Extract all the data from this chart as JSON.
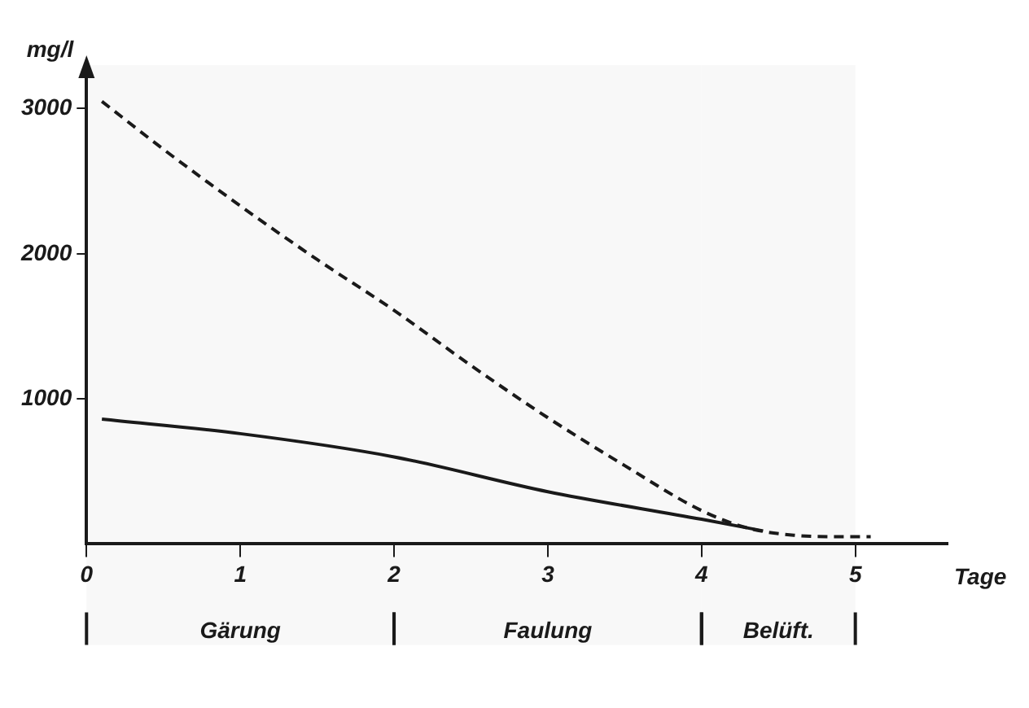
{
  "chart_data": {
    "type": "line",
    "xlabel": "Tage",
    "ylabel": "mg/l",
    "xlim": [
      0,
      5.6
    ],
    "ylim": [
      0,
      3300
    ],
    "xticks": [
      0,
      1,
      2,
      3,
      4,
      5
    ],
    "yticks": [
      1000,
      2000,
      3000
    ],
    "grid": false,
    "legend": false,
    "marker": "none",
    "series": [
      {
        "color": "#1a1a1a",
        "line_style": "dashed",
        "x": [
          0.1,
          0.5,
          1,
          1.5,
          2,
          2.5,
          3,
          3.5,
          4,
          4.3,
          4.6,
          4.9,
          5.1
        ],
        "values": [
          3050,
          2720,
          2330,
          1960,
          1610,
          1230,
          870,
          540,
          230,
          110,
          60,
          50,
          50
        ]
      },
      {
        "color": "#1a1a1a",
        "line_style": "solid",
        "x": [
          0.1,
          1,
          2,
          3,
          4,
          4.4
        ],
        "values": [
          860,
          760,
          600,
          360,
          170,
          90
        ]
      }
    ],
    "bands": [
      {
        "axis": "x",
        "from": 0,
        "to": 2,
        "label": "Gärung"
      },
      {
        "axis": "x",
        "from": 2,
        "to": 4,
        "label": "Faulung"
      },
      {
        "axis": "x",
        "from": 4,
        "to": 5,
        "label": "Belüft."
      }
    ]
  }
}
